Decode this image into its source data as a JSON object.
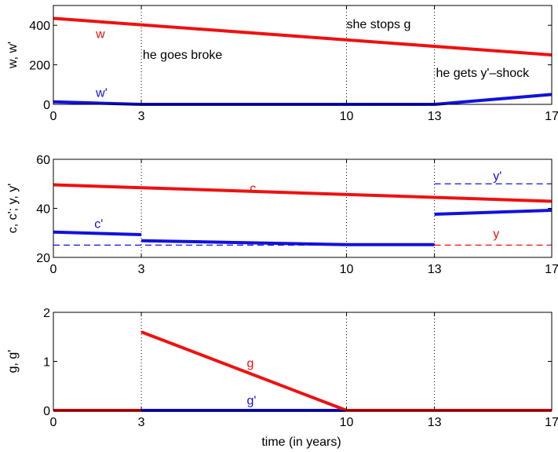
{
  "colors": {
    "red": "#ee1111",
    "blue": "#1111dd"
  },
  "xlabel": "time (in years)",
  "xticks": [
    0,
    3,
    10,
    13,
    17
  ],
  "vlines": [
    3,
    10,
    13
  ],
  "chart_data": [
    {
      "type": "line",
      "ylabel": "w, w'",
      "xlim": [
        0,
        17
      ],
      "ylim": [
        0,
        500
      ],
      "yticks": [
        0,
        200,
        400
      ],
      "series": [
        {
          "name": "w",
          "color": "red",
          "style": "solid",
          "points": [
            [
              0,
              435
            ],
            [
              17,
              250
            ]
          ]
        },
        {
          "name": "w'",
          "color": "blue",
          "style": "solid",
          "points": [
            [
              0,
              13
            ],
            [
              3,
              0
            ],
            [
              13,
              0
            ],
            [
              17,
              50
            ]
          ]
        }
      ],
      "labels": [
        {
          "text": "w",
          "color": "red",
          "x": 1.45,
          "y": 335
        },
        {
          "text": "w'",
          "color": "blue",
          "x": 1.45,
          "y": 37
        }
      ],
      "annotations": [
        {
          "text": "he goes broke",
          "x": 3.05,
          "y": 230
        },
        {
          "text": "she stops g",
          "x": 10.0,
          "y": 385
        },
        {
          "text": "he gets y'–shock",
          "x": 13.05,
          "y": 138
        }
      ]
    },
    {
      "type": "line",
      "ylabel": "c, c'; y, y'",
      "xlim": [
        0,
        17
      ],
      "ylim": [
        20,
        60
      ],
      "yticks": [
        20,
        40,
        60
      ],
      "series": [
        {
          "name": "c",
          "color": "red",
          "style": "solid",
          "points": [
            [
              0,
              49.6
            ],
            [
              17,
              42.9
            ]
          ]
        },
        {
          "name": "c'",
          "color": "blue",
          "style": "solid",
          "points": [
            [
              0,
              30.3
            ],
            [
              3,
              29.3
            ],
            [
              null,
              null
            ],
            [
              3,
              26.8
            ],
            [
              10,
              25.2
            ],
            [
              13,
              25.2
            ],
            [
              null,
              null
            ],
            [
              13,
              37.6
            ],
            [
              17,
              39.2
            ]
          ]
        },
        {
          "name": "y'",
          "color": "blue",
          "style": "dashed",
          "points": [
            [
              0,
              25
            ],
            [
              13,
              25
            ],
            [
              null,
              null
            ],
            [
              13,
              50
            ],
            [
              17,
              50
            ]
          ]
        },
        {
          "name": "y",
          "color": "red",
          "style": "dashed",
          "points": [
            [
              13,
              25
            ],
            [
              17,
              25
            ]
          ]
        }
      ],
      "labels": [
        {
          "text": "c",
          "color": "red",
          "x": 6.7,
          "y": 46.5
        },
        {
          "text": "c'",
          "color": "blue",
          "x": 1.4,
          "y": 32
        },
        {
          "text": "y'",
          "color": "blue",
          "x": 15.0,
          "y": 51.5
        },
        {
          "text": "y",
          "color": "red",
          "x": 15.0,
          "y": 28
        }
      ]
    },
    {
      "type": "line",
      "ylabel": "g, g'",
      "xlim": [
        0,
        17
      ],
      "ylim": [
        0,
        2
      ],
      "yticks": [
        0,
        1,
        2
      ],
      "series": [
        {
          "name": "g'",
          "color": "blue",
          "style": "solid",
          "points": [
            [
              3,
              0
            ],
            [
              10,
              0
            ]
          ]
        },
        {
          "name": "g",
          "color": "red",
          "style": "solid",
          "points": [
            [
              0,
              0
            ],
            [
              3,
              0
            ],
            [
              null,
              null
            ],
            [
              3,
              1.6
            ],
            [
              10,
              0
            ],
            [
              17,
              0
            ]
          ]
        }
      ],
      "labels": [
        {
          "text": "g",
          "color": "red",
          "x": 6.6,
          "y": 0.88
        },
        {
          "text": "g'",
          "color": "blue",
          "x": 6.6,
          "y": 0.12
        }
      ]
    }
  ]
}
